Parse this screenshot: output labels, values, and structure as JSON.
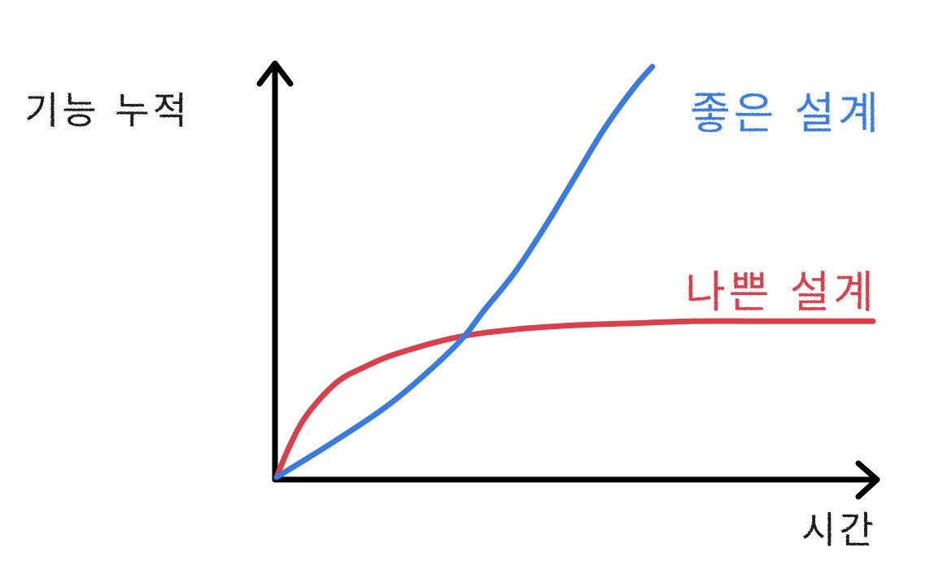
{
  "chart_data": {
    "type": "line",
    "xlabel": "시간",
    "ylabel": "기능 누적",
    "xlim": [
      0,
      1
    ],
    "ylim": [
      0,
      1
    ],
    "grid": false,
    "legend": "inline labels at line ends",
    "series": [
      {
        "name": "좋은 설계",
        "color": "#3a7be0",
        "x": [
          0,
          0.1,
          0.2,
          0.3,
          0.35,
          0.4,
          0.45,
          0.5,
          0.55,
          0.6,
          0.63
        ],
        "y": [
          0,
          0.09,
          0.19,
          0.32,
          0.41,
          0.5,
          0.61,
          0.73,
          0.85,
          0.95,
          1.0
        ]
      },
      {
        "name": "나쁜 설계",
        "color": "#d9404b",
        "x": [
          0,
          0.02,
          0.05,
          0.1,
          0.15,
          0.2,
          0.3,
          0.4,
          0.5,
          0.6,
          0.7,
          0.8,
          0.9,
          1.0
        ],
        "y": [
          0,
          0.07,
          0.15,
          0.23,
          0.27,
          0.3,
          0.34,
          0.36,
          0.37,
          0.375,
          0.38,
          0.38,
          0.38,
          0.38
        ]
      }
    ]
  }
}
